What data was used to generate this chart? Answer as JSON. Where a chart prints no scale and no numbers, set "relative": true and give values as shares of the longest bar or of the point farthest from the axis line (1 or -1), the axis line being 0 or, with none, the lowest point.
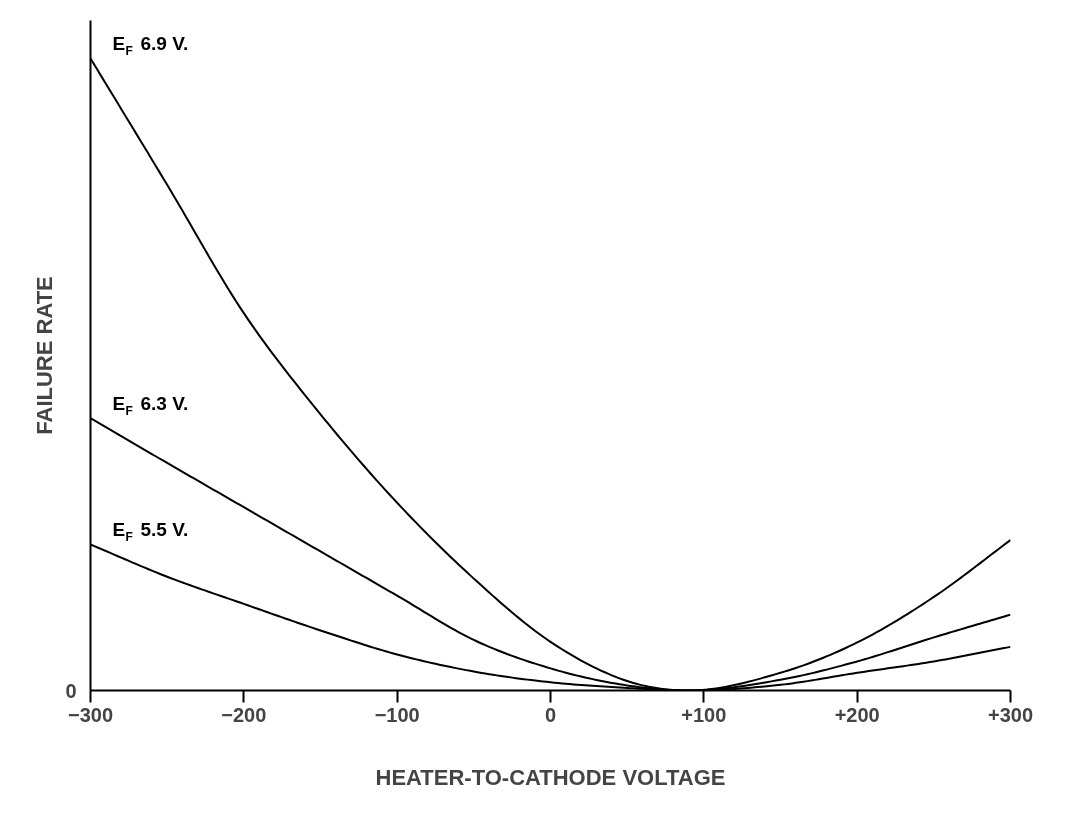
{
  "chart_data": {
    "type": "line",
    "relative": true,
    "xlabel": "HEATER-TO-CATHODE VOLTAGE",
    "ylabel": "FAILURE RATE",
    "x": [
      -300,
      -250,
      -200,
      -150,
      -100,
      -50,
      0,
      50,
      90,
      150,
      200,
      250,
      300
    ],
    "xlim": [
      -300,
      300
    ],
    "xticks": [
      {
        "value": -300,
        "label": "−300"
      },
      {
        "value": -200,
        "label": "−200"
      },
      {
        "value": -100,
        "label": "−100"
      },
      0,
      {
        "value": 100,
        "label": "+100"
      },
      {
        "value": 200,
        "label": "+200"
      },
      {
        "value": 300,
        "label": "+300"
      }
    ],
    "series": [
      {
        "name": "E$_{F}$ 6.9 V.",
        "color": "#000000",
        "values": [
          1.0,
          0.8,
          0.597,
          0.437,
          0.297,
          0.177,
          0.077,
          0.015,
          0.0,
          0.028,
          0.076,
          0.148,
          0.238
        ]
      },
      {
        "name": "E$_{F}$ 6.3 V.",
        "color": "#000000",
        "values": [
          0.431,
          0.36,
          0.29,
          0.22,
          0.15,
          0.08,
          0.035,
          0.008,
          0.0,
          0.017,
          0.046,
          0.084,
          0.12
        ]
      },
      {
        "name": "E$_{F}$ 5.5 V.",
        "color": "#000000",
        "values": [
          0.231,
          0.18,
          0.137,
          0.095,
          0.057,
          0.03,
          0.013,
          0.004,
          0.0,
          0.009,
          0.028,
          0.046,
          0.069
        ]
      }
    ],
    "annotations": [
      "0"
    ],
    "grid": false,
    "marker": "none",
    "line_style": "solid"
  }
}
